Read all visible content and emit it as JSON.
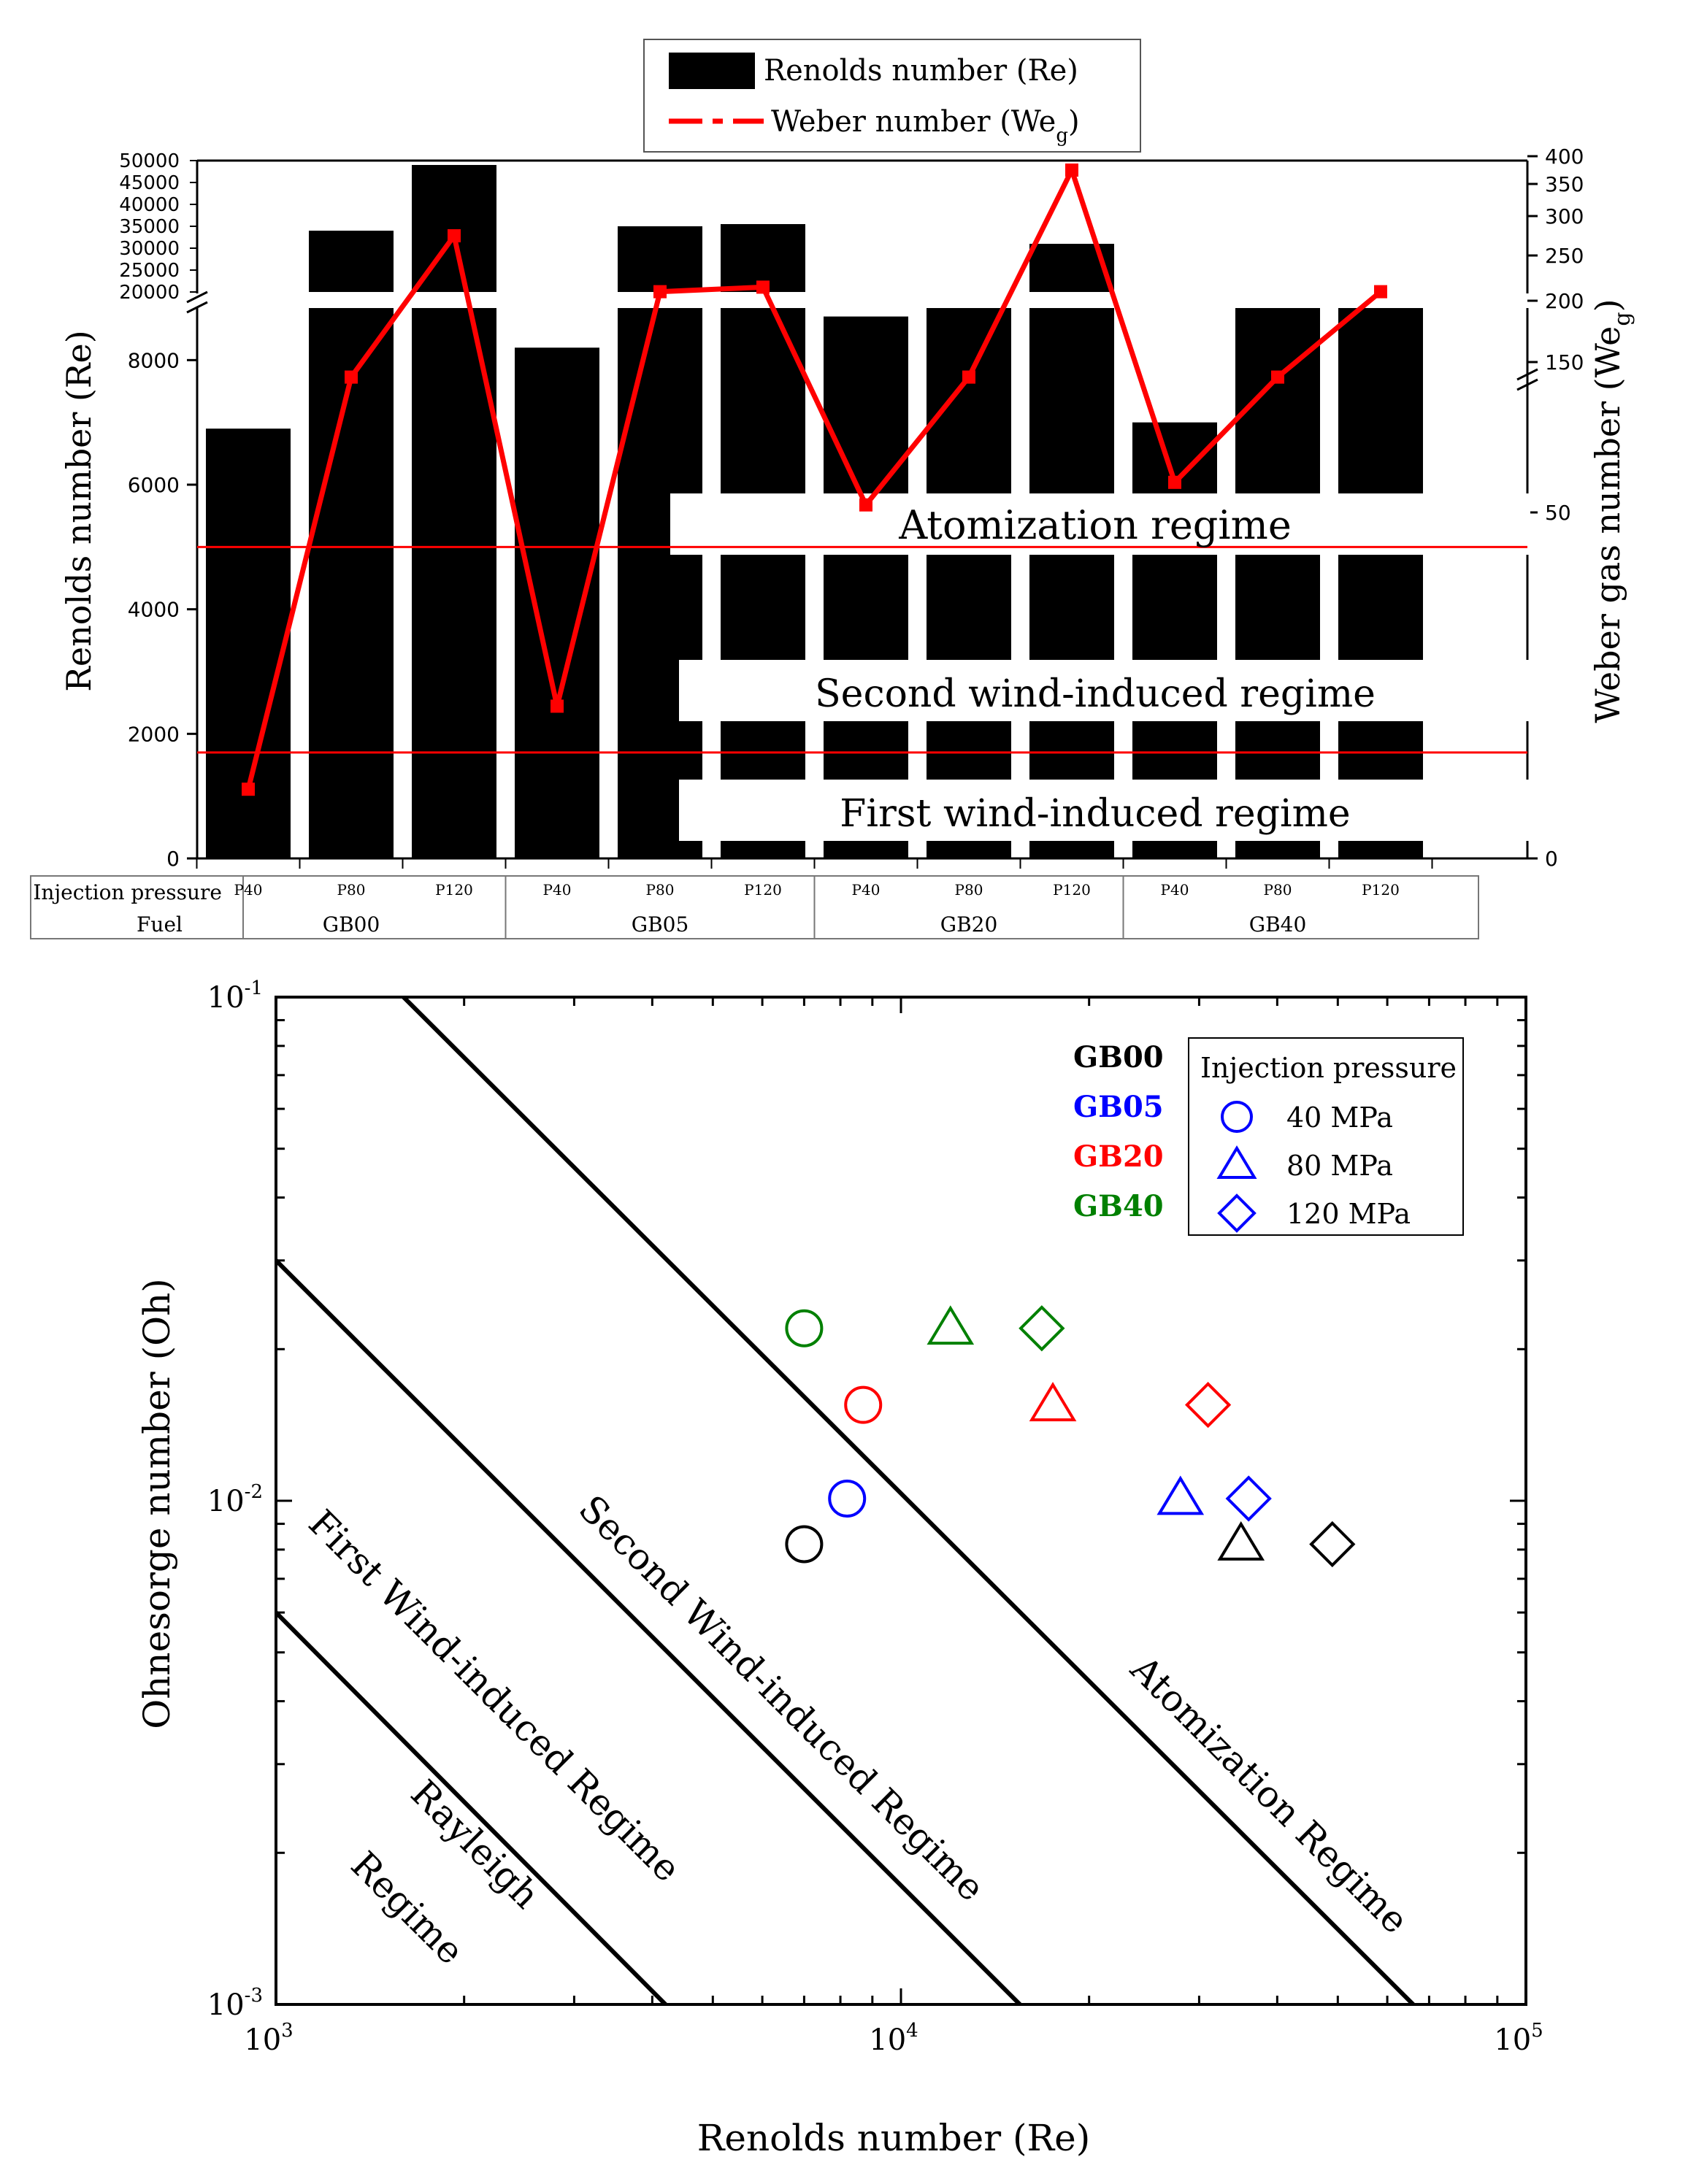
{
  "chart_data": [
    {
      "type": "bar",
      "title": "",
      "legend": {
        "position": "top-center",
        "entries": [
          "Renolds number (Re)",
          "Weber number (We",
          "g",
          ")"
        ]
      },
      "xlabel_rows": {
        "row1_label": "Injection pressure",
        "row2_label": "Fuel",
        "pressures": [
          "P40",
          "P80",
          "P120",
          "P40",
          "P80",
          "P120",
          "P40",
          "P80",
          "P120",
          "P40",
          "P80",
          "P120"
        ],
        "fuels": [
          "GB00",
          "GB05",
          "GB20",
          "GB40"
        ]
      },
      "ylabel_left": "Renolds number (Re)",
      "ylabel_right": "Weber gas number (We",
      "ylabel_right_sub": "g",
      "ylabel_right_close": ")",
      "left_axis_lower": {
        "range": [
          0,
          9000
        ],
        "ticks": [
          "0",
          "2000",
          "4000",
          "6000",
          "8000"
        ]
      },
      "left_axis_upper": {
        "range": [
          20000,
          50000
        ],
        "ticks": [
          "20000",
          "25000",
          "30000",
          "35000",
          "40000",
          "45000",
          "50000"
        ]
      },
      "right_axis_lower": {
        "ticks": [
          "0",
          "50",
          "150"
        ]
      },
      "right_axis_upper": {
        "ticks": [
          "200",
          "250",
          "300",
          "350",
          "400"
        ]
      },
      "series": [
        {
          "name": "Renolds number (Re)",
          "kind": "bar",
          "values": [
            6900,
            34000,
            49000,
            8200,
            35000,
            35500,
            8700,
            19500,
            31000,
            7000,
            19500,
            19500
          ]
        },
        {
          "name": "Weber number (Weg)",
          "kind": "line",
          "values": [
            10,
            140,
            275,
            22,
            210,
            215,
            55,
            140,
            375,
            70,
            140,
            210
          ]
        }
      ],
      "regime_lines": [
        {
          "name": "Second wind-induced threshold",
          "re": 5000
        },
        {
          "name": "First wind-induced threshold",
          "re": 1700
        }
      ],
      "annotations": [
        "Atomization regime",
        "Second wind-induced regime",
        "First wind-induced regime"
      ]
    },
    {
      "type": "scatter",
      "xlabel": "Renolds number (Re)",
      "ylabel": "Ohnesorge number (Oh)",
      "xscale": "log",
      "yscale": "log",
      "xlim": [
        1000,
        100000
      ],
      "ylim": [
        0.001,
        0.1
      ],
      "x_ticks": [
        {
          "base": "10",
          "exp": "3"
        },
        {
          "base": "10",
          "exp": "4"
        },
        {
          "base": "10",
          "exp": "5"
        }
      ],
      "y_ticks": [
        {
          "base": "10",
          "exp": "-3"
        },
        {
          "base": "10",
          "exp": "-2"
        },
        {
          "base": "10",
          "exp": "-1"
        }
      ],
      "legend_fuel": [
        {
          "label": "GB00",
          "color": "#000000"
        },
        {
          "label": "GB05",
          "color": "#0000ff"
        },
        {
          "label": "GB20",
          "color": "#ff0000"
        },
        {
          "label": "GB40",
          "color": "#008000"
        }
      ],
      "legend_pressure": {
        "title": "Injection pressure",
        "items": [
          {
            "label": "40 MPa",
            "marker": "circle"
          },
          {
            "label": "80 MPa",
            "marker": "triangle"
          },
          {
            "label": "120 MPa",
            "marker": "diamond"
          }
        ]
      },
      "legend_marker_color": "#0000ff",
      "points": [
        {
          "fuel": "GB00",
          "marker": "circle",
          "re": 7000,
          "oh": 0.0082
        },
        {
          "fuel": "GB00",
          "marker": "triangle",
          "re": 35000,
          "oh": 0.0082
        },
        {
          "fuel": "GB00",
          "marker": "diamond",
          "re": 49000,
          "oh": 0.0082
        },
        {
          "fuel": "GB05",
          "marker": "circle",
          "re": 8200,
          "oh": 0.0101
        },
        {
          "fuel": "GB05",
          "marker": "triangle",
          "re": 28000,
          "oh": 0.0101
        },
        {
          "fuel": "GB05",
          "marker": "diamond",
          "re": 36000,
          "oh": 0.0101
        },
        {
          "fuel": "GB20",
          "marker": "circle",
          "re": 8700,
          "oh": 0.0155
        },
        {
          "fuel": "GB20",
          "marker": "triangle",
          "re": 17500,
          "oh": 0.0155
        },
        {
          "fuel": "GB20",
          "marker": "diamond",
          "re": 31000,
          "oh": 0.0155
        },
        {
          "fuel": "GB40",
          "marker": "circle",
          "re": 7000,
          "oh": 0.022
        },
        {
          "fuel": "GB40",
          "marker": "triangle",
          "re": 12000,
          "oh": 0.022
        },
        {
          "fuel": "GB40",
          "marker": "diamond",
          "re": 16800,
          "oh": 0.022
        }
      ],
      "boundary_lines": [
        {
          "name": "rayleigh-boundary",
          "from": [
            1000,
            0.006
          ],
          "to": [
            4200,
            0.001
          ]
        },
        {
          "name": "first-wind-boundary",
          "from": [
            1000,
            0.03
          ],
          "to": [
            15500,
            0.001
          ]
        },
        {
          "name": "second-wind-boundary",
          "from": [
            1600,
            0.1
          ],
          "to": [
            66000,
            0.001
          ]
        }
      ],
      "regions": [
        "Rayleigh",
        "Regime",
        "First Wind-induced Regime",
        "Second Wind-induced Regime",
        "Atomization Regime"
      ]
    }
  ]
}
